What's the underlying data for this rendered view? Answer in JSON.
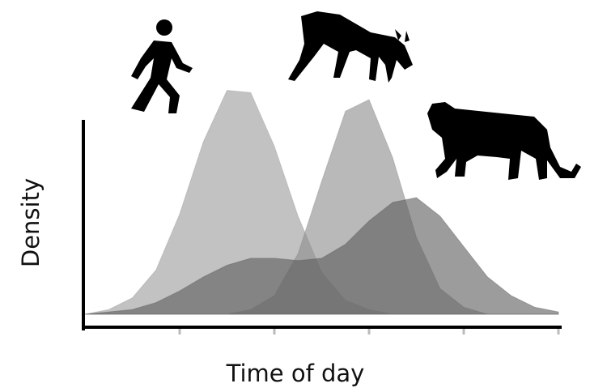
{
  "chart_data": {
    "type": "area",
    "x_label": "Time of day",
    "y_label": "Density",
    "x": [
      0,
      0.25,
      0.5,
      0.75,
      1,
      1.25,
      1.5,
      1.75,
      2,
      2.25,
      2.5,
      2.75,
      3,
      3.25,
      3.5,
      3.75,
      4,
      4.25,
      4.5,
      4.75,
      5
    ],
    "xlim": [
      0,
      5
    ],
    "xticks": [
      1,
      2,
      3,
      4,
      5
    ],
    "ylim": [
      0,
      1
    ],
    "series": [
      {
        "color": "#9a9a9a",
        "values": [
          0,
          0.02,
          0.07,
          0.19,
          0.43,
          0.74,
          0.96,
          0.95,
          0.72,
          0.42,
          0.18,
          0.06,
          0.02,
          0,
          0,
          0,
          0,
          0,
          0,
          0,
          0
        ]
      },
      {
        "color": "#8a8a8a",
        "values": [
          0,
          0,
          0,
          0,
          0,
          0,
          0,
          0.02,
          0.08,
          0.26,
          0.57,
          0.87,
          0.92,
          0.67,
          0.33,
          0.11,
          0.03,
          0,
          0,
          0,
          0
        ]
      },
      {
        "color": "#5a5a5a",
        "values": [
          0,
          0.01,
          0.02,
          0.05,
          0.1,
          0.16,
          0.21,
          0.24,
          0.24,
          0.23,
          0.24,
          0.3,
          0.4,
          0.48,
          0.5,
          0.42,
          0.29,
          0.16,
          0.08,
          0.03,
          0.01
        ]
      }
    ]
  }
}
